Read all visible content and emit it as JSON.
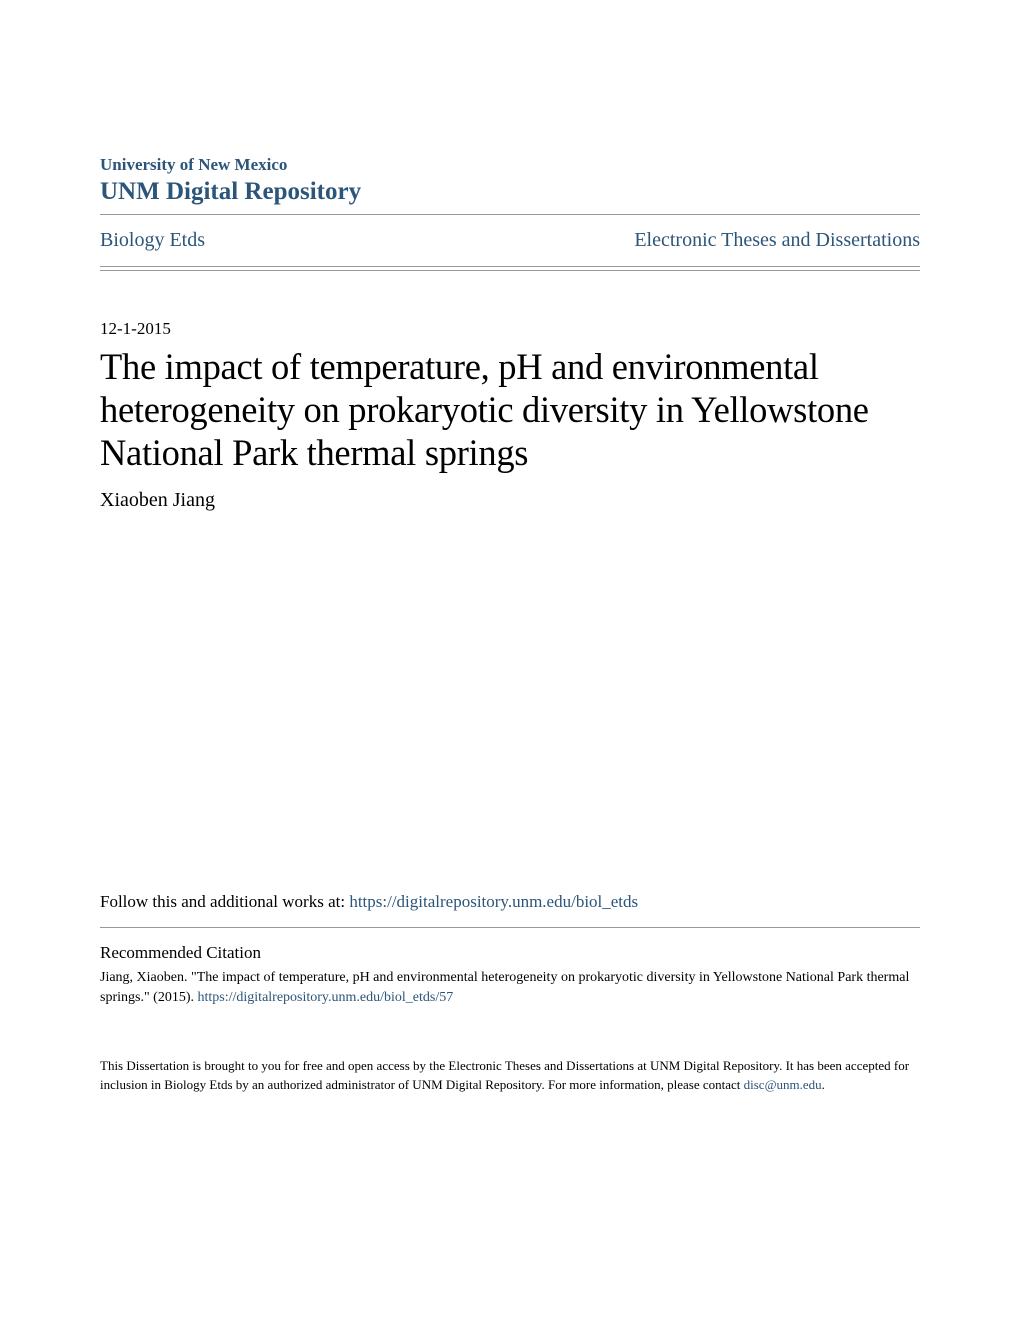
{
  "header": {
    "institution": "University of New Mexico",
    "repository": "UNM Digital Repository"
  },
  "nav": {
    "left_link": "Biology Etds",
    "right_link": "Electronic Theses and Dissertations"
  },
  "document": {
    "date": "12-1-2015",
    "title": "The impact of temperature, pH and environmental heterogeneity on prokaryotic diversity in Yellowstone National Park thermal springs",
    "author": "Xiaoben Jiang"
  },
  "follow": {
    "label": "Follow this and additional works at: ",
    "url": "https://digitalrepository.unm.edu/biol_etds"
  },
  "citation": {
    "heading": "Recommended Citation",
    "text_part1": "Jiang, Xiaoben. \"The impact of temperature, pH and environmental heterogeneity on prokaryotic diversity in Yellowstone National Park thermal springs.\" (2015). ",
    "url": "https://digitalrepository.unm.edu/biol_etds/57"
  },
  "footer": {
    "text": "This Dissertation is brought to you for free and open access by the Electronic Theses and Dissertations at UNM Digital Repository. It has been accepted for inclusion in Biology Etds by an authorized administrator of UNM Digital Repository. For more information, please contact ",
    "email": "disc@unm.edu",
    "period": "."
  },
  "colors": {
    "link_color": "#2b5579",
    "text_color": "#000000",
    "border_color": "#999999",
    "background": "#ffffff"
  },
  "typography": {
    "institution_size": 17,
    "repository_size": 25,
    "nav_size": 20,
    "date_size": 17,
    "title_size": 36.5,
    "author_size": 20,
    "follow_size": 17,
    "citation_heading_size": 17,
    "citation_text_size": 14,
    "footer_size": 13
  }
}
